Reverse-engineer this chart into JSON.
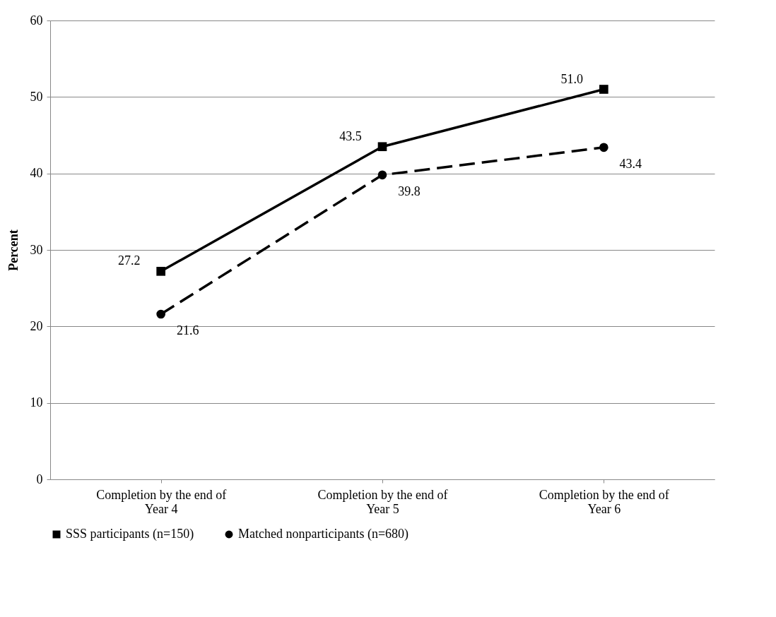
{
  "chart_data": {
    "type": "line",
    "ylabel": "Percent",
    "categories": [
      "Completion by the end of Year 4",
      "Completion by the end of Year 5",
      "Completion by the end of Year 6"
    ],
    "series": [
      {
        "name": "SSS participants (n=150)",
        "color": "#000000",
        "values": [
          27.2,
          43.5,
          51.0
        ],
        "value_labels": [
          "27.2",
          "43.5",
          "51.0"
        ],
        "marker": "square",
        "line_style": "solid"
      },
      {
        "name": "Matched nonparticipants (n=680)",
        "color": "#000000",
        "values": [
          21.6,
          39.8,
          43.4
        ],
        "value_labels": [
          "21.6",
          "39.8",
          "43.4"
        ],
        "marker": "circle",
        "line_style": "dashed"
      }
    ],
    "ylim": [
      0,
      60
    ],
    "yticks": [
      0,
      10,
      20,
      30,
      40,
      50,
      60
    ],
    "grid": "y",
    "legend": "bottom"
  }
}
